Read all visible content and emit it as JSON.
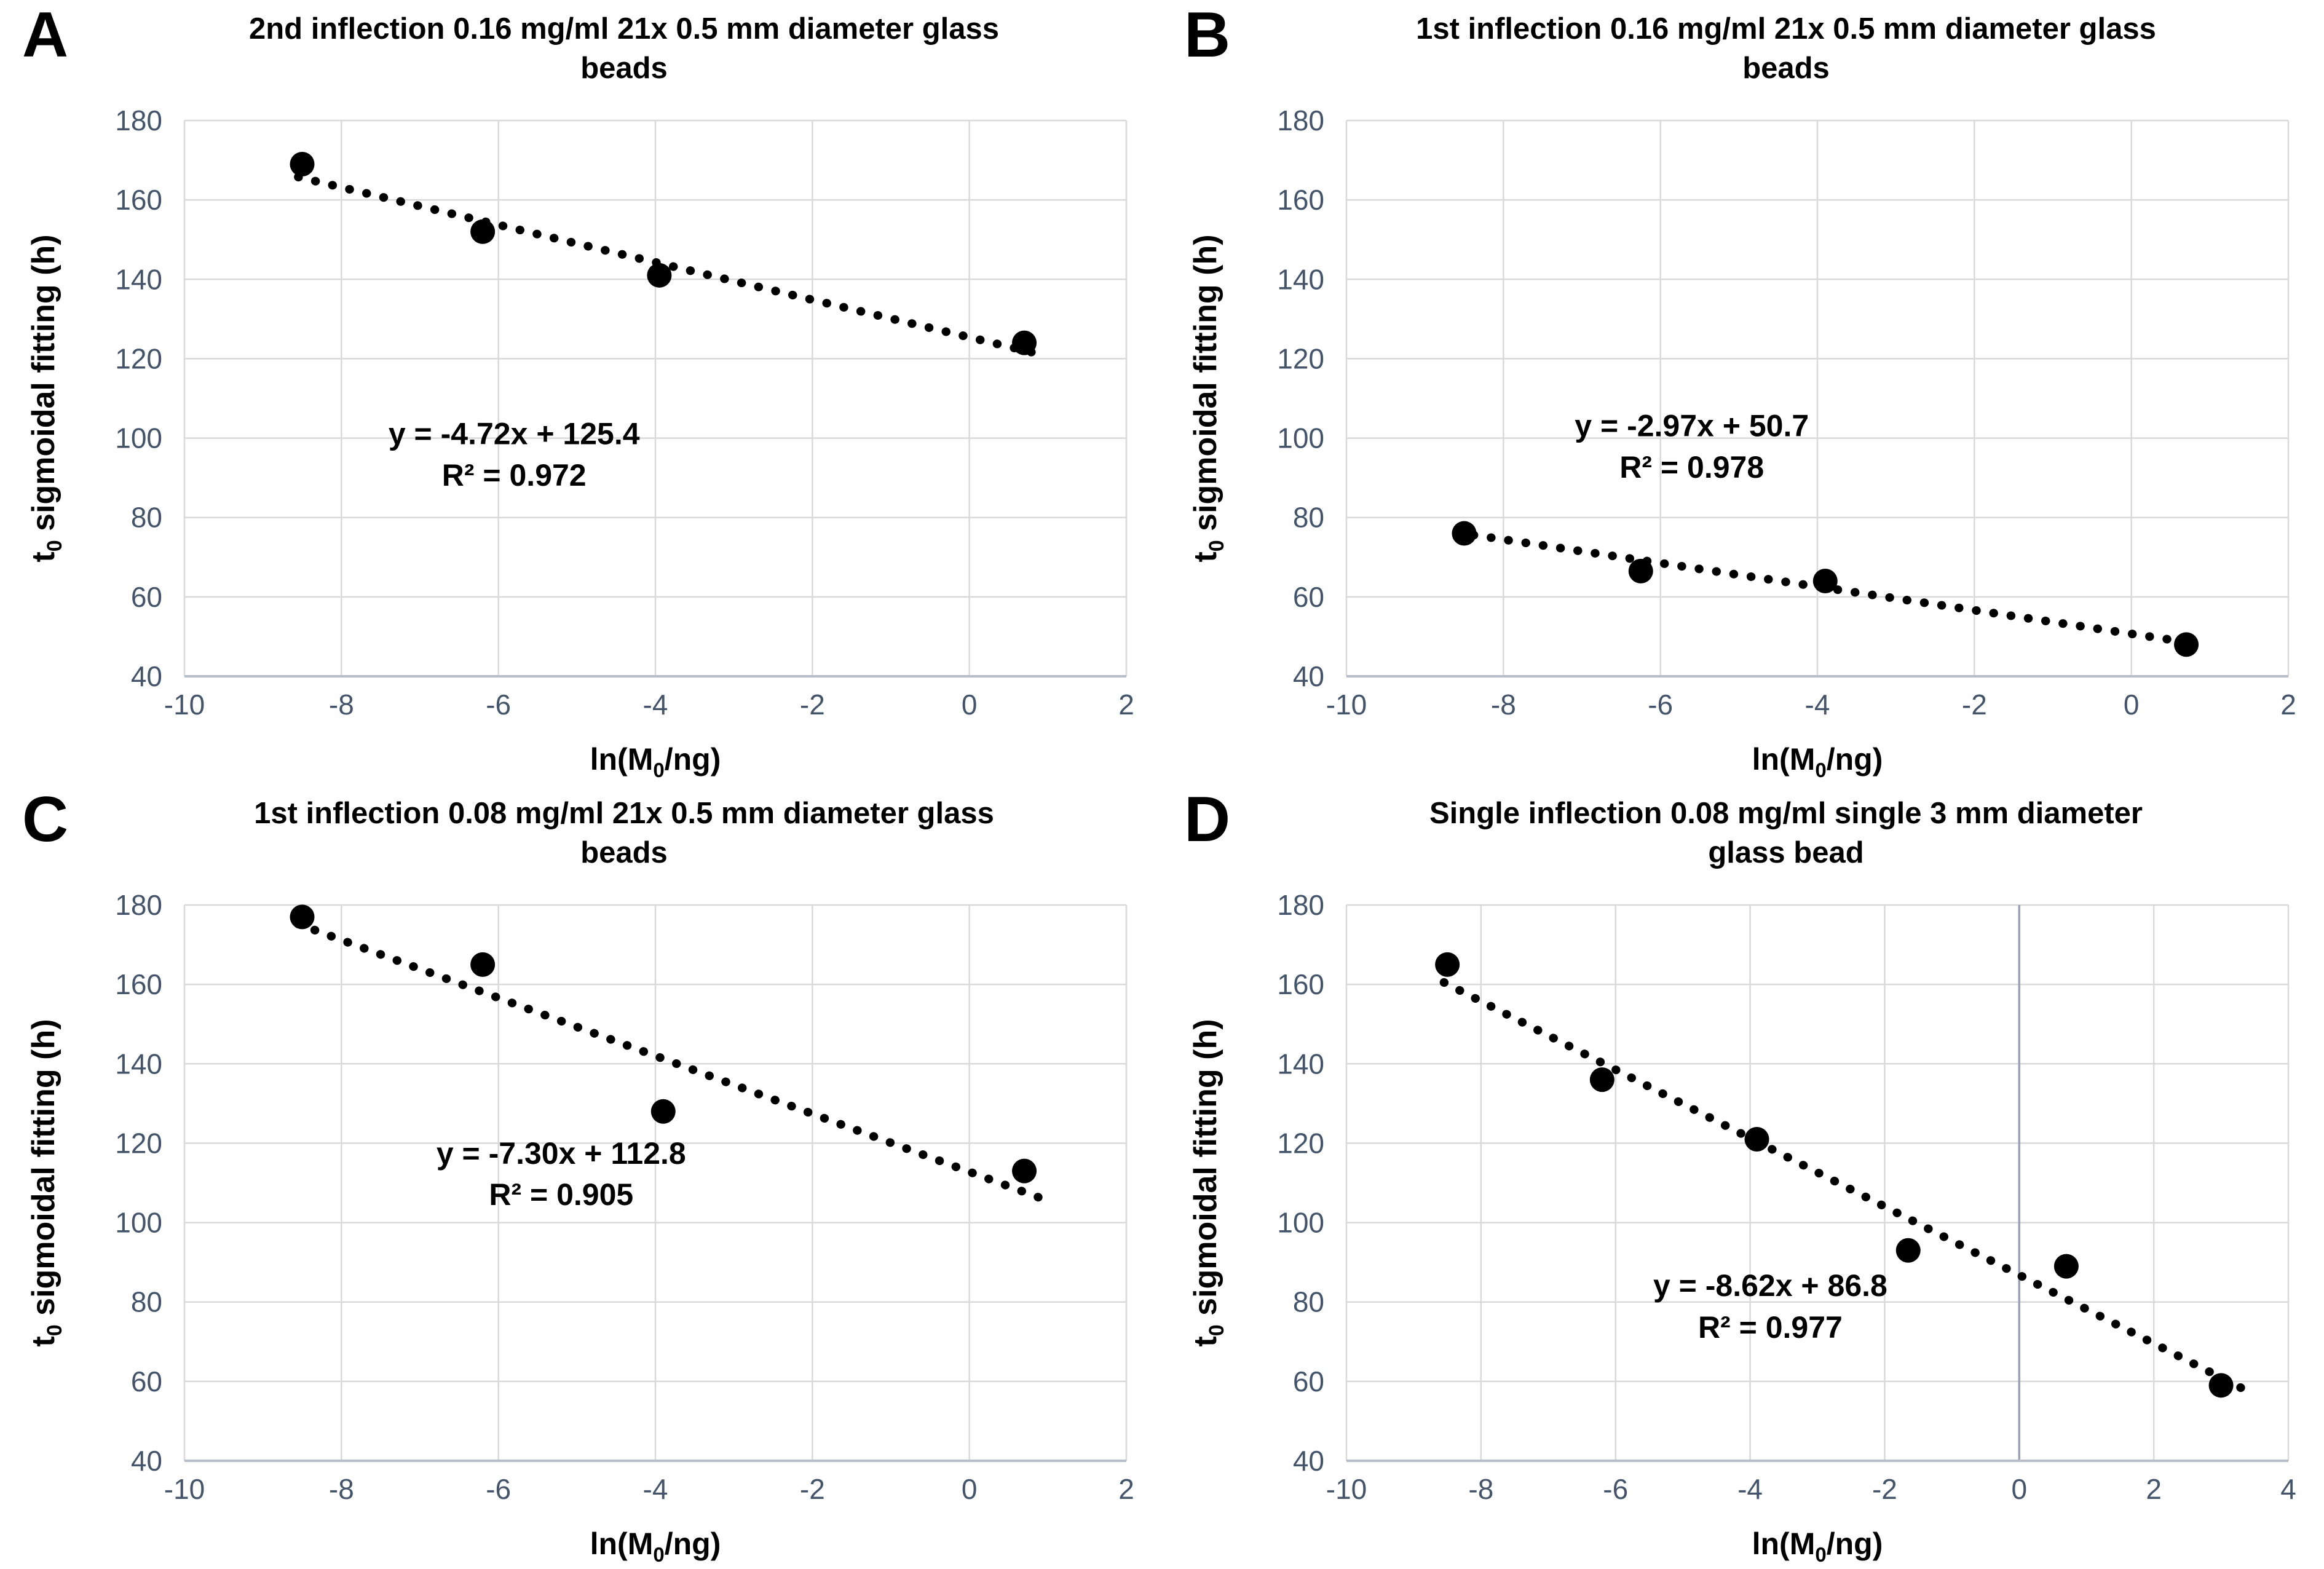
{
  "figure": {
    "background": "#ffffff",
    "colors": {
      "gridline": "#d9d9d9",
      "axis_line": "#b7bdc9",
      "zero_line": "#98a3b8",
      "tick_label": "#44546A",
      "marker": "#000000",
      "text": "#000000"
    },
    "y_axis_title": {
      "pre": "t",
      "sub": "0",
      "post": " sigmoidal fitting (h)"
    },
    "x_axis_title": {
      "pre": "ln(M",
      "sub": "0",
      "post": "/ng)"
    }
  },
  "chart_data": [
    {
      "type": "scatter",
      "panel_label": "A",
      "title_lines": [
        "2nd inflection 0.16 mg/ml 21x 0.5 mm diameter glass",
        "beads"
      ],
      "xlabel": "ln(M0/ng)",
      "ylabel": "t0 sigmoidal fitting (h)",
      "xlim": [
        -10,
        2
      ],
      "xticks": [
        -10,
        -8,
        -6,
        -4,
        -2,
        0,
        2
      ],
      "ylim": [
        40,
        180
      ],
      "yticks": [
        40,
        60,
        80,
        100,
        120,
        140,
        160,
        180
      ],
      "grid": true,
      "points": [
        [
          -8.5,
          169
        ],
        [
          -6.2,
          152
        ],
        [
          -3.95,
          141
        ],
        [
          0.7,
          124
        ]
      ],
      "trend": {
        "slope": -4.72,
        "intercept": 125.4,
        "x_start": -8.55,
        "x_end": 0.85
      },
      "equation": "y = -4.72x + 125.4",
      "r_squared": "R² = 0.972",
      "eq_center_x": -5.8,
      "eq_line1_y": 98.5,
      "eq_line2_y": 88.0,
      "zero_line": false
    },
    {
      "type": "scatter",
      "panel_label": "B",
      "title_lines": [
        "1st inflection 0.16 mg/ml 21x 0.5 mm diameter glass",
        "beads"
      ],
      "xlabel": "ln(M0/ng)",
      "ylabel": "t0 sigmoidal fitting (h)",
      "xlim": [
        -10,
        2
      ],
      "xticks": [
        -10,
        -8,
        -6,
        -4,
        -2,
        0,
        2
      ],
      "ylim": [
        40,
        180
      ],
      "yticks": [
        40,
        60,
        80,
        100,
        120,
        140,
        160,
        180
      ],
      "grid": true,
      "points": [
        [
          -8.5,
          76
        ],
        [
          -6.25,
          66.5
        ],
        [
          -3.9,
          64
        ],
        [
          0.7,
          48
        ]
      ],
      "trend": {
        "slope": -2.97,
        "intercept": 50.7,
        "x_start": -8.6,
        "x_end": 0.85
      },
      "equation": "y = -2.97x + 50.7",
      "r_squared": "R² = 0.978",
      "eq_center_x": -5.6,
      "eq_line1_y": 100.5,
      "eq_line2_y": 90.0,
      "zero_line": false
    },
    {
      "type": "scatter",
      "panel_label": "C",
      "title_lines": [
        "1st inflection 0.08 mg/ml 21x 0.5 mm diameter glass",
        "beads"
      ],
      "xlabel": "ln(M0/ng)",
      "ylabel": "t0 sigmoidal fitting (h)",
      "xlim": [
        -10,
        2
      ],
      "xticks": [
        -10,
        -8,
        -6,
        -4,
        -2,
        0,
        2
      ],
      "ylim": [
        40,
        180
      ],
      "yticks": [
        40,
        60,
        80,
        100,
        120,
        140,
        160,
        180
      ],
      "grid": true,
      "points": [
        [
          -8.5,
          177
        ],
        [
          -6.2,
          165
        ],
        [
          -3.9,
          128
        ],
        [
          0.7,
          113
        ]
      ],
      "trend": {
        "slope": -7.3,
        "intercept": 112.8,
        "x_start": -8.55,
        "x_end": 0.95
      },
      "equation": "y = -7.30x + 112.8",
      "r_squared": "R² = 0.905",
      "eq_center_x": -5.2,
      "eq_line1_y": 114.8,
      "eq_line2_y": 104.4,
      "zero_line": false
    },
    {
      "type": "scatter",
      "panel_label": "D",
      "title_lines": [
        "Single inflection 0.08 mg/ml single 3 mm diameter",
        "glass bead"
      ],
      "xlabel": "ln(M0/ng)",
      "ylabel": "t0 sigmoidal fitting (h)",
      "xlim": [
        -10,
        4
      ],
      "xticks": [
        -10,
        -8,
        -6,
        -4,
        -2,
        0,
        2,
        4
      ],
      "ylim": [
        40,
        180
      ],
      "yticks": [
        40,
        60,
        80,
        100,
        120,
        140,
        160,
        180
      ],
      "grid": true,
      "points": [
        [
          -8.5,
          165
        ],
        [
          -6.2,
          136
        ],
        [
          -3.9,
          121
        ],
        [
          -1.65,
          93
        ],
        [
          0.7,
          89
        ],
        [
          3.0,
          59
        ]
      ],
      "trend": {
        "slope": -8.62,
        "intercept": 86.8,
        "x_start": -8.55,
        "x_end": 3.3
      },
      "equation": "y = -8.62x + 86.8",
      "r_squared": "R² = 0.977",
      "eq_center_x": -3.7,
      "eq_line1_y": 81.5,
      "eq_line2_y": 71.0,
      "zero_line": true
    }
  ]
}
